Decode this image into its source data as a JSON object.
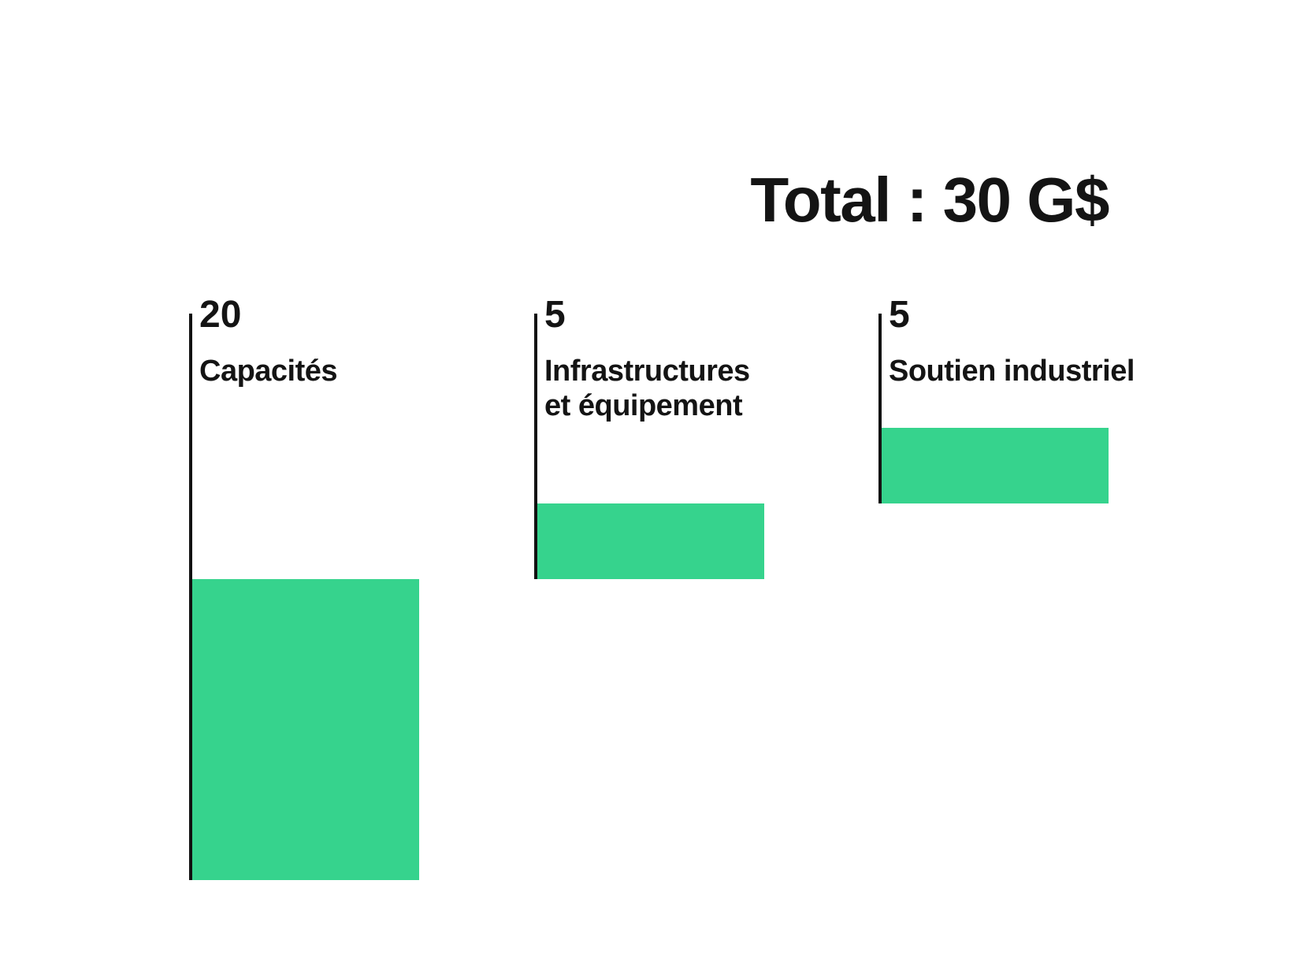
{
  "page": {
    "background": "#ffffff"
  },
  "header": {
    "title": "Total : 30 G$"
  },
  "colors": {
    "bar": "#36d38d",
    "text": "#141414",
    "axis": "#121212"
  },
  "chart_data": {
    "type": "bar",
    "variant": "cascading-waterfall",
    "title": "Total : 30 G$",
    "total": 30,
    "unit": "G$",
    "categories": [
      "Capacités",
      "Infrastructures et équipement",
      "Soutien industriel"
    ],
    "values": [
      20,
      5,
      5
    ],
    "value_labels": [
      "20",
      "5",
      "5"
    ],
    "bar_color": "#36d38d",
    "orientation": "vertical",
    "grid": false,
    "legend": "none",
    "layout_hint": "three bars of equal width descend like a waterfall left to right; each bar's bottom aligns with the previous bar's top; bar heights are proportional to values; a vertical axis line runs from the labels down to the bottom of each bar"
  },
  "columns": [
    {
      "value": "20",
      "line1": "Capacités",
      "line2": ""
    },
    {
      "value": "5",
      "line1": "Infrastructures",
      "line2": "et équipement"
    },
    {
      "value": "5",
      "line1": "Soutien industriel",
      "line2": ""
    }
  ]
}
